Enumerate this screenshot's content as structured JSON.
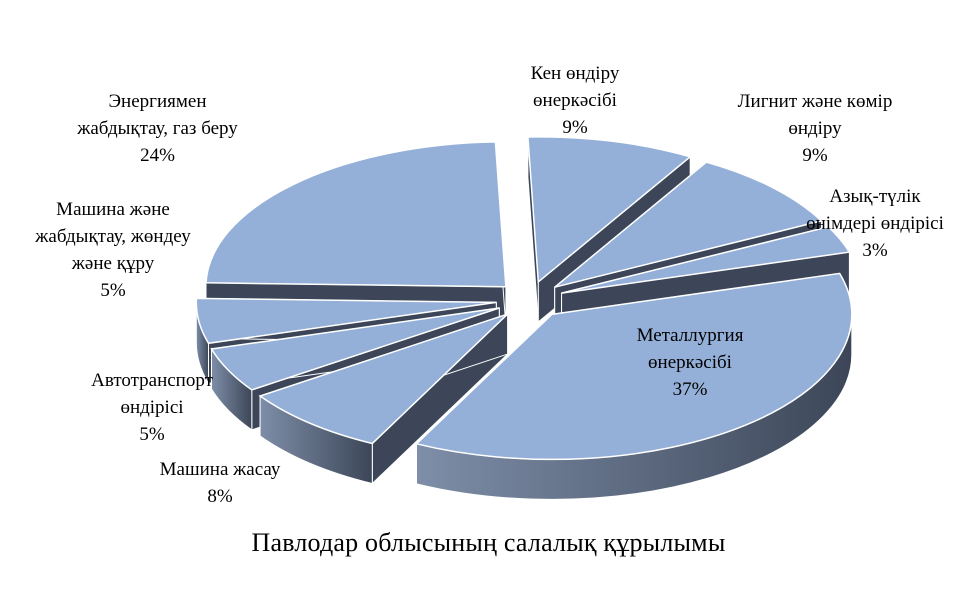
{
  "chart_data": {
    "type": "pie",
    "style": "3d-exploded",
    "title": "Павлодар облысының салалық құрылымы",
    "slices": [
      {
        "label": [
          "Кен өндіру",
          "өнеркәсібі"
        ],
        "value": 9,
        "value_label": "9%"
      },
      {
        "label": [
          "Лигнит және көмір",
          "өндіру"
        ],
        "value": 9,
        "value_label": "9%"
      },
      {
        "label": [
          "Азық-түлік",
          "өнімдері өндірісі"
        ],
        "value": 3,
        "value_label": "3%"
      },
      {
        "label": [
          "Металлургия",
          "өнеркәсібі"
        ],
        "value": 37,
        "value_label": "37%"
      },
      {
        "label": [
          "Машина жасау"
        ],
        "value": 8,
        "value_label": "8%"
      },
      {
        "label": [
          "Автотранспорт",
          "өндірісі"
        ],
        "value": 5,
        "value_label": "5%"
      },
      {
        "label": [
          "Машина және",
          "жабдықтау, жөндеу",
          "және құру"
        ],
        "value": 5,
        "value_label": "5%"
      },
      {
        "label": [
          "Энергиямен",
          "жабдықтау, газ беру"
        ],
        "value": 24,
        "value_label": "24%"
      }
    ],
    "colors": {
      "top": "#94b0d8",
      "side_light": "#7e8ea8",
      "side_dark": "#3c4658",
      "edge": "#ffffff"
    }
  }
}
